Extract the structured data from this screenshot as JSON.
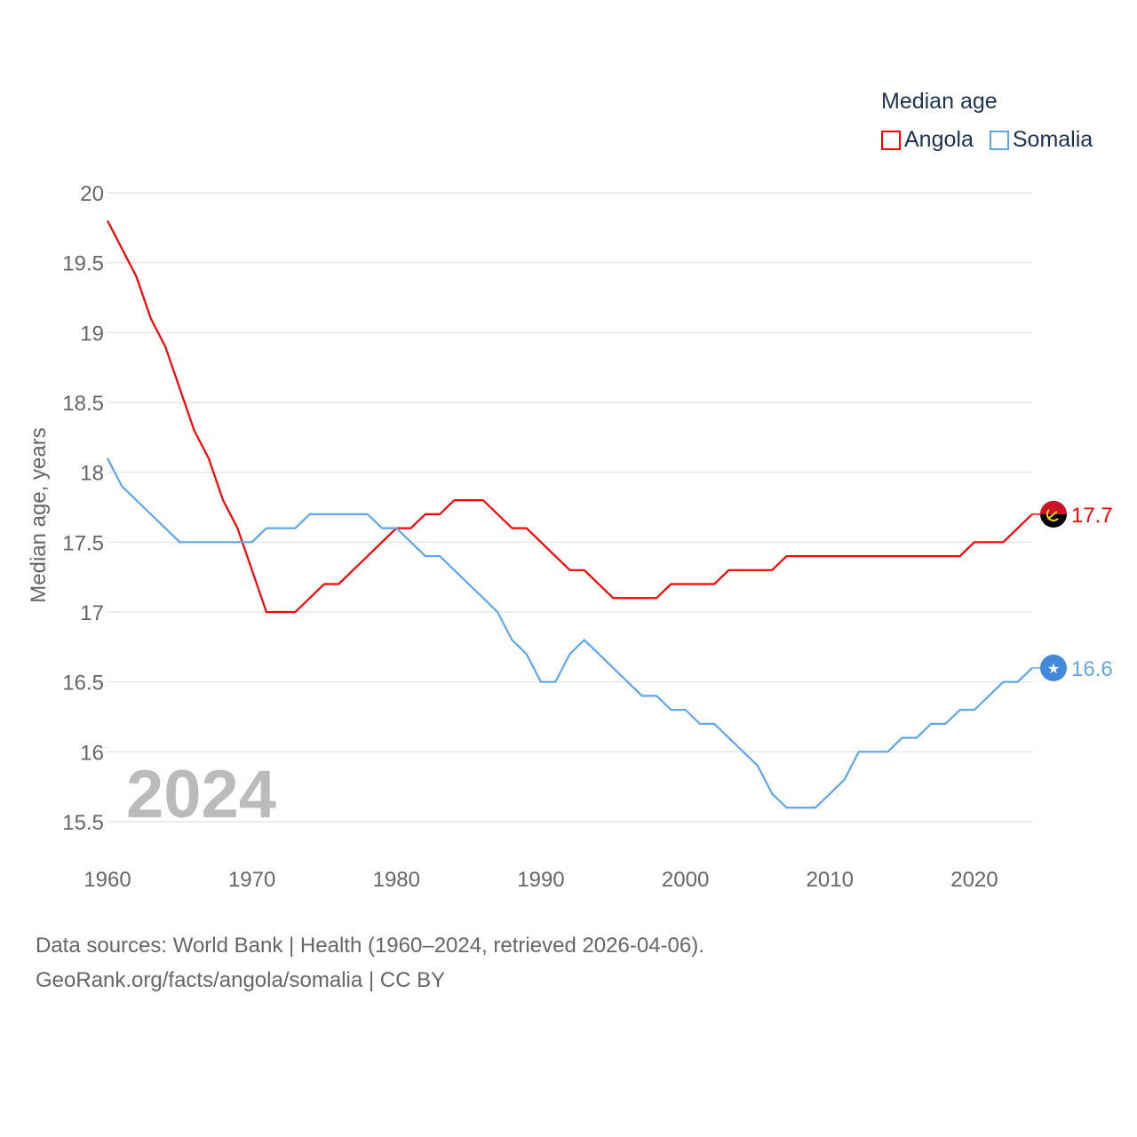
{
  "chart_data": {
    "type": "line",
    "title": "Median age",
    "xlabel": "",
    "ylabel": "Median age, years",
    "xlim": [
      1960,
      2024
    ],
    "ylim": [
      15.5,
      20
    ],
    "yticks": [
      15.5,
      16,
      16.5,
      17,
      17.5,
      18,
      18.5,
      19,
      19.5,
      20
    ],
    "ytick_labels": [
      "15.5",
      "16",
      "16.5",
      "17",
      "17.5",
      "18",
      "18.5",
      "19",
      "19.5",
      "20"
    ],
    "xticks": [
      1960,
      1970,
      1980,
      1990,
      2000,
      2010,
      2020
    ],
    "xtick_labels": [
      "1960",
      "1970",
      "1980",
      "1990",
      "2000",
      "2010",
      "2020"
    ],
    "grid": true,
    "legend_position": "top-right",
    "current_year_label": "2024",
    "x": [
      1960,
      1961,
      1962,
      1963,
      1964,
      1965,
      1966,
      1967,
      1968,
      1969,
      1970,
      1971,
      1972,
      1973,
      1974,
      1975,
      1976,
      1977,
      1978,
      1979,
      1980,
      1981,
      1982,
      1983,
      1984,
      1985,
      1986,
      1987,
      1988,
      1989,
      1990,
      1991,
      1992,
      1993,
      1994,
      1995,
      1996,
      1997,
      1998,
      1999,
      2000,
      2001,
      2002,
      2003,
      2004,
      2005,
      2006,
      2007,
      2008,
      2009,
      2010,
      2011,
      2012,
      2013,
      2014,
      2015,
      2016,
      2017,
      2018,
      2019,
      2020,
      2021,
      2022,
      2023,
      2024
    ],
    "series": [
      {
        "name": "Angola",
        "color": "#ff0000",
        "end_label": "17.7",
        "flag": "angola-flag",
        "values": [
          19.8,
          19.6,
          19.4,
          19.1,
          18.9,
          18.6,
          18.3,
          18.1,
          17.8,
          17.6,
          17.3,
          17.0,
          17.0,
          17.0,
          17.1,
          17.2,
          17.2,
          17.3,
          17.4,
          17.5,
          17.6,
          17.6,
          17.7,
          17.7,
          17.8,
          17.8,
          17.8,
          17.7,
          17.6,
          17.6,
          17.5,
          17.4,
          17.3,
          17.3,
          17.2,
          17.1,
          17.1,
          17.1,
          17.1,
          17.2,
          17.2,
          17.2,
          17.2,
          17.3,
          17.3,
          17.3,
          17.3,
          17.4,
          17.4,
          17.4,
          17.4,
          17.4,
          17.4,
          17.4,
          17.4,
          17.4,
          17.4,
          17.4,
          17.4,
          17.4,
          17.5,
          17.5,
          17.5,
          17.6,
          17.7
        ]
      },
      {
        "name": "Somalia",
        "color": "#5ea6ea",
        "end_label": "16.6",
        "flag": "somalia-flag",
        "values": [
          18.1,
          17.9,
          17.8,
          17.7,
          17.6,
          17.5,
          17.5,
          17.5,
          17.5,
          17.5,
          17.5,
          17.6,
          17.6,
          17.6,
          17.7,
          17.7,
          17.7,
          17.7,
          17.7,
          17.6,
          17.6,
          17.5,
          17.4,
          17.4,
          17.3,
          17.2,
          17.1,
          17.0,
          16.8,
          16.7,
          16.5,
          16.5,
          16.7,
          16.8,
          16.7,
          16.6,
          16.5,
          16.4,
          16.4,
          16.3,
          16.3,
          16.2,
          16.2,
          16.1,
          16.0,
          15.9,
          15.7,
          15.6,
          15.6,
          15.6,
          15.7,
          15.8,
          16.0,
          16.0,
          16.0,
          16.1,
          16.1,
          16.2,
          16.2,
          16.3,
          16.3,
          16.4,
          16.5,
          16.5,
          16.6
        ]
      }
    ]
  },
  "legend": {
    "title": "Median age",
    "items": [
      "Angola",
      "Somalia"
    ]
  },
  "footer": {
    "sources": "Data sources: World Bank | Health (1960–2024, retrieved 2026-04-06).",
    "credit": "GeoRank.org/facts/angola/somalia | CC BY"
  }
}
